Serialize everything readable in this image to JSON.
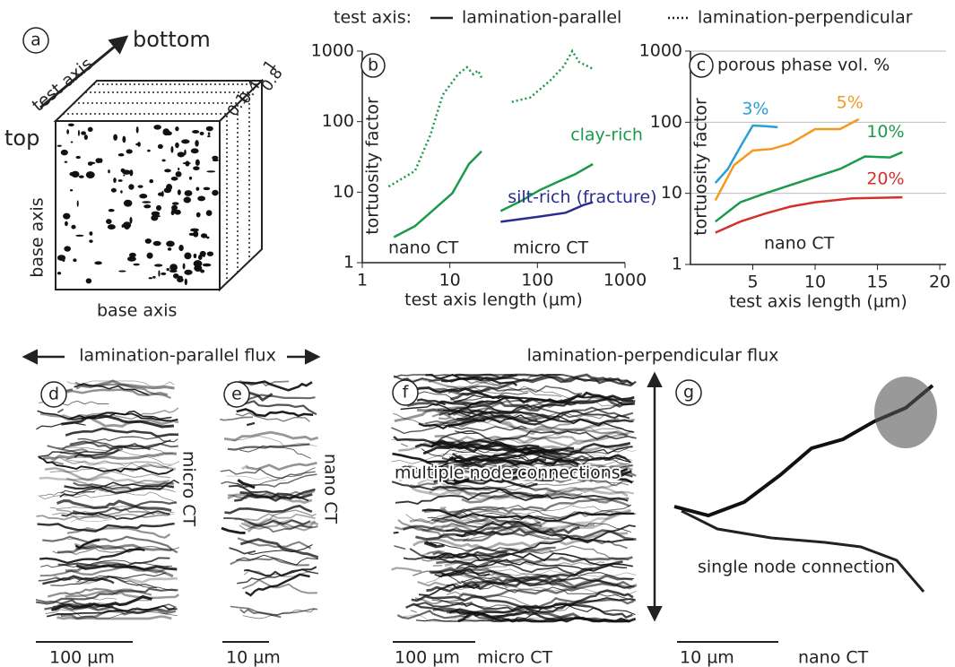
{
  "legend": {
    "title": "test axis:",
    "solid": "lamination-parallel",
    "dotted": "lamination-perpendicular"
  },
  "panel_a": {
    "letter": "a",
    "bottom": "bottom",
    "test_axis": "test axis",
    "top": "top",
    "base_axis_left": "base axis",
    "base_axis_bottom": "base axis",
    "levels": [
      "0.1",
      "0.4",
      "0.8",
      "1"
    ]
  },
  "chart_data": [
    {
      "type": "line",
      "letter": "b",
      "ylabel": "tortuosity factor",
      "xlabel": "test axis length (µm)",
      "xscale": "log",
      "yscale": "log",
      "xlim": [
        1,
        1000
      ],
      "ylim": [
        1,
        1000
      ],
      "xticks": [
        1,
        10,
        100,
        1000
      ],
      "yticks": [
        1,
        10,
        100,
        1000
      ],
      "grid": false,
      "annotations": [
        "nano CT",
        "micro CT"
      ],
      "series": [
        {
          "color": "#1a9a4a",
          "style": "dotted",
          "x": [
            2,
            4,
            6,
            8.3,
            12.4,
            15.7,
            18.5,
            21,
            23
          ],
          "values": [
            12,
            20,
            65,
            240,
            470,
            590,
            470,
            530,
            420
          ]
        },
        {
          "color": "#1a9a4a",
          "style": "dotted",
          "x": [
            51,
            83,
            139,
            200,
            250,
            300,
            430
          ],
          "values": [
            190,
            220,
            380,
            610,
            1000,
            700,
            560
          ]
        },
        {
          "color": "#1a9a4a",
          "style": "solid",
          "x": [
            2.3,
            4,
            6.8,
            10.7,
            16.5,
            23
          ],
          "values": [
            2.3,
            3.3,
            5.9,
            9.7,
            25,
            38
          ]
        },
        {
          "name": "clay-rich",
          "color": "#1a9a4a",
          "style": "solid",
          "x": [
            38,
            65,
            105,
            167,
            270,
            430
          ],
          "values": [
            5.4,
            7.5,
            10.6,
            13.8,
            18,
            25
          ]
        },
        {
          "name": "silt-rich (fracture)",
          "color": "#2b2c8f",
          "style": "solid",
          "x": [
            38,
            105,
            210,
            340,
            430
          ],
          "values": [
            3.8,
            4.5,
            5.1,
            6.6,
            7.2
          ]
        }
      ]
    },
    {
      "type": "line",
      "letter": "c",
      "title": "porous phase vol. %",
      "ylabel": "tortuosity factor",
      "xlabel": "test axis length (µm)",
      "xscale": "linear",
      "yscale": "log",
      "xlim": [
        0,
        20.5
      ],
      "ylim": [
        1,
        1000
      ],
      "xticks": [
        5,
        10,
        15,
        20
      ],
      "yticks": [
        1,
        10,
        100,
        1000
      ],
      "grid": true,
      "annotations": [
        "nano CT"
      ],
      "series": [
        {
          "name": "3%",
          "color": "#2a9fd6",
          "style": "solid",
          "x": [
            2,
            3,
            4,
            5,
            6,
            7
          ],
          "values": [
            14,
            22,
            45,
            90,
            88,
            85
          ]
        },
        {
          "name": "5%",
          "color": "#f39a1e",
          "style": "solid",
          "x": [
            2,
            3.5,
            5,
            6.5,
            8,
            10,
            12,
            13.5
          ],
          "values": [
            8,
            25,
            40,
            42,
            50,
            80,
            80,
            110
          ]
        },
        {
          "name": "10%",
          "color": "#1a9a4a",
          "style": "solid",
          "x": [
            2,
            4,
            6,
            8,
            10,
            12,
            14,
            16,
            17
          ],
          "values": [
            4,
            7.5,
            10,
            13,
            17,
            22,
            33,
            32,
            38
          ]
        },
        {
          "name": "20%",
          "color": "#d4312b",
          "style": "solid",
          "x": [
            2,
            4,
            6,
            8,
            10,
            13,
            17
          ],
          "values": [
            2.8,
            4,
            5.2,
            6.5,
            7.5,
            8.5,
            8.8
          ]
        }
      ]
    }
  ],
  "bottom": {
    "parallel": "lamination-parallel flux",
    "perpendicular": "lamination-perpendicular flux",
    "d": {
      "letter": "d",
      "method": "micro CT",
      "scale": "100 µm"
    },
    "e": {
      "letter": "e",
      "method": "nano CT",
      "scale": "10 µm"
    },
    "f": {
      "letter": "f",
      "note": "multiple node connections",
      "scale": "100 µm",
      "method": "micro CT"
    },
    "g": {
      "letter": "g",
      "note": "single node connection",
      "scale": "10 µm",
      "method": "nano CT"
    }
  }
}
